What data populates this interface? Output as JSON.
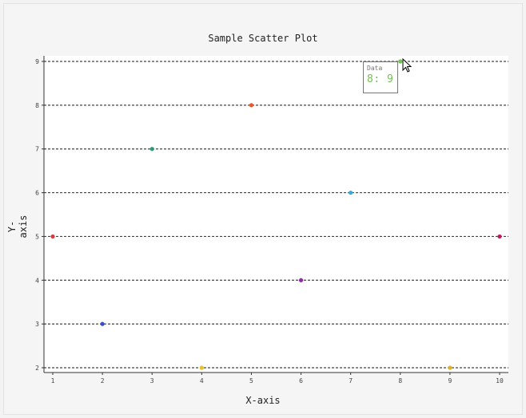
{
  "chart_data": {
    "type": "scatter",
    "title": "Sample Scatter Plot",
    "xlabel": "X-axis",
    "ylabel": "Y-axis",
    "xlim": [
      1,
      10
    ],
    "ylim": [
      2,
      9
    ],
    "xticks": [
      1,
      2,
      3,
      4,
      5,
      6,
      7,
      8,
      9,
      10
    ],
    "yticks": [
      2,
      3,
      4,
      5,
      6,
      7,
      8,
      9
    ],
    "grid": "horizontal dashed",
    "points": [
      {
        "x": 1,
        "y": 5,
        "color": "#d63b3b"
      },
      {
        "x": 2,
        "y": 3,
        "color": "#3b4fc4"
      },
      {
        "x": 3,
        "y": 7,
        "color": "#2a9d74"
      },
      {
        "x": 4,
        "y": 2,
        "color": "#e8c22a"
      },
      {
        "x": 5,
        "y": 8,
        "color": "#e2592f"
      },
      {
        "x": 6,
        "y": 4,
        "color": "#8e2aa3"
      },
      {
        "x": 7,
        "y": 6,
        "color": "#39a9dc"
      },
      {
        "x": 8,
        "y": 9,
        "color": "#73c054"
      },
      {
        "x": 9,
        "y": 2,
        "color": "#e3b12a"
      },
      {
        "x": 10,
        "y": 5,
        "color": "#c2185b"
      }
    ]
  },
  "tooltip": {
    "label": "Data",
    "value": "8: 9"
  }
}
